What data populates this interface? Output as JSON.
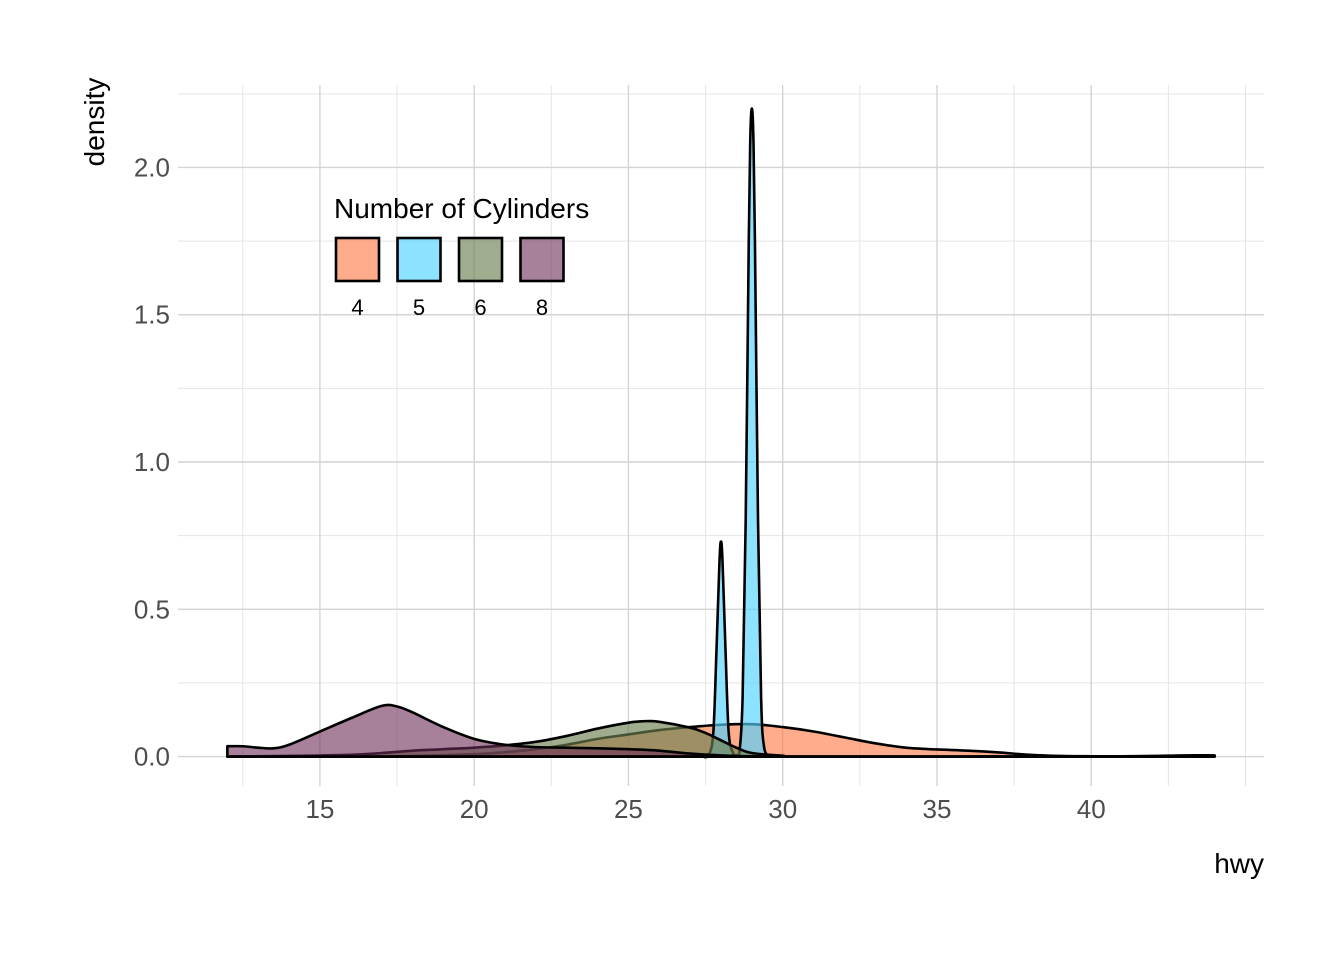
{
  "chart_data": {
    "type": "area",
    "xlabel": "hwy",
    "ylabel": "density",
    "xlim": [
      10.4,
      45.6
    ],
    "ylim": [
      -0.1,
      2.28
    ],
    "x_ticks": [
      15,
      20,
      25,
      30,
      35,
      40
    ],
    "x_tick_labels": [
      "15",
      "20",
      "25",
      "30",
      "35",
      "40"
    ],
    "x_minor_ticks": [
      12.5,
      17.5,
      22.5,
      27.5,
      32.5,
      37.5,
      42.5,
      45
    ],
    "y_ticks": [
      0.0,
      0.5,
      1.0,
      1.5,
      2.0
    ],
    "y_tick_labels": [
      "0.0",
      "0.5",
      "1.0",
      "1.5",
      "2.0"
    ],
    "y_minor_ticks": [
      0.25,
      0.75,
      1.25,
      1.75,
      2.25
    ],
    "grid": true,
    "legend": {
      "title": "Number of Cylinders",
      "placement": "top-left inside",
      "entries": [
        "4",
        "5",
        "6",
        "8"
      ]
    },
    "series": [
      {
        "name": "4",
        "color": "#FF7F50",
        "opacity": 0.65,
        "points": [
          [
            12,
            0
          ],
          [
            16,
            0
          ],
          [
            18,
            0.002
          ],
          [
            20,
            0.008
          ],
          [
            21,
            0.015
          ],
          [
            22,
            0.025
          ],
          [
            23,
            0.04
          ],
          [
            24,
            0.06
          ],
          [
            25,
            0.075
          ],
          [
            26,
            0.09
          ],
          [
            27,
            0.1
          ],
          [
            28,
            0.108
          ],
          [
            29,
            0.11
          ],
          [
            30,
            0.1
          ],
          [
            31,
            0.085
          ],
          [
            32,
            0.065
          ],
          [
            33,
            0.045
          ],
          [
            34,
            0.03
          ],
          [
            35,
            0.024
          ],
          [
            36,
            0.02
          ],
          [
            37,
            0.014
          ],
          [
            38,
            0.006
          ],
          [
            39,
            0.002
          ],
          [
            40,
            0.001
          ],
          [
            41,
            0.001
          ],
          [
            42,
            0.002
          ],
          [
            43,
            0.004
          ],
          [
            44,
            0.004
          ]
        ]
      },
      {
        "name": "5",
        "color": "#4FD2FF",
        "opacity": 0.65,
        "points": [
          [
            27.4,
            0
          ],
          [
            27.6,
            0.005
          ],
          [
            27.75,
            0.08
          ],
          [
            27.85,
            0.35
          ],
          [
            27.95,
            0.66
          ],
          [
            28.0,
            0.73
          ],
          [
            28.05,
            0.66
          ],
          [
            28.15,
            0.35
          ],
          [
            28.25,
            0.08
          ],
          [
            28.4,
            0.01
          ],
          [
            28.5,
            0.005
          ],
          [
            28.6,
            0.02
          ],
          [
            28.7,
            0.2
          ],
          [
            28.8,
            0.8
          ],
          [
            28.9,
            1.75
          ],
          [
            28.95,
            2.1
          ],
          [
            29.0,
            2.2
          ],
          [
            29.05,
            2.1
          ],
          [
            29.1,
            1.75
          ],
          [
            29.2,
            0.8
          ],
          [
            29.3,
            0.2
          ],
          [
            29.4,
            0.03
          ],
          [
            29.6,
            0
          ]
        ]
      },
      {
        "name": "6",
        "color": "#6B7F50",
        "opacity": 0.65,
        "points": [
          [
            12,
            0
          ],
          [
            14,
            0.002
          ],
          [
            16,
            0.006
          ],
          [
            17,
            0.012
          ],
          [
            18,
            0.02
          ],
          [
            19,
            0.025
          ],
          [
            20,
            0.03
          ],
          [
            21,
            0.038
          ],
          [
            22,
            0.05
          ],
          [
            23,
            0.07
          ],
          [
            24,
            0.095
          ],
          [
            25,
            0.115
          ],
          [
            25.5,
            0.12
          ],
          [
            26,
            0.118
          ],
          [
            27,
            0.098
          ],
          [
            27.5,
            0.08
          ],
          [
            28,
            0.055
          ],
          [
            28.5,
            0.03
          ],
          [
            29,
            0.012
          ],
          [
            30,
            0.003
          ],
          [
            31,
            0
          ],
          [
            44,
            0
          ]
        ]
      },
      {
        "name": "8",
        "color": "#6B2D55",
        "opacity": 0.6,
        "points": [
          [
            12,
            0.035
          ],
          [
            12.5,
            0.035
          ],
          [
            13,
            0.03
          ],
          [
            13.5,
            0.028
          ],
          [
            14,
            0.04
          ],
          [
            15,
            0.085
          ],
          [
            16,
            0.13
          ],
          [
            17,
            0.172
          ],
          [
            17.5,
            0.17
          ],
          [
            18,
            0.15
          ],
          [
            19,
            0.1
          ],
          [
            20,
            0.06
          ],
          [
            21,
            0.04
          ],
          [
            22,
            0.032
          ],
          [
            23,
            0.03
          ],
          [
            24,
            0.028
          ],
          [
            25,
            0.025
          ],
          [
            26,
            0.02
          ],
          [
            27,
            0.01
          ],
          [
            28,
            0.004
          ],
          [
            29,
            0.001
          ],
          [
            30,
            0
          ],
          [
            44,
            0
          ]
        ]
      }
    ]
  }
}
